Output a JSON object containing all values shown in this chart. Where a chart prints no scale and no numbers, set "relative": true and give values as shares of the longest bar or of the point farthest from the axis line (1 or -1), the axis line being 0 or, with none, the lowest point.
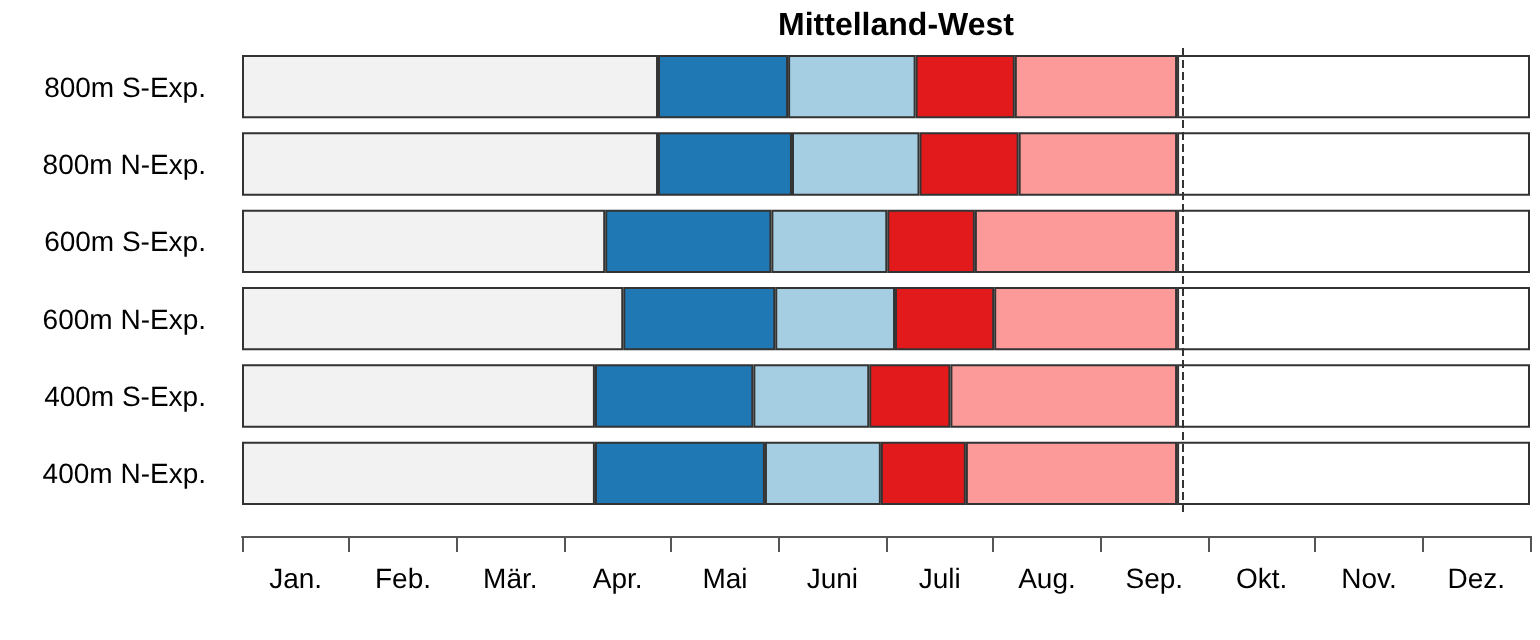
{
  "chart_data": {
    "type": "bar",
    "orientation": "horizontal",
    "stacked": true,
    "relative": true,
    "title": "Mittelland-West",
    "categories": [
      "800m S-Exp.",
      "800m N-Exp.",
      "600m S-Exp.",
      "600m N-Exp.",
      "400m S-Exp.",
      "400m N-Exp."
    ],
    "series": [
      {
        "color": "#f2f2f2",
        "values": [
          0.323,
          0.323,
          0.282,
          0.296,
          0.274,
          0.274
        ]
      },
      {
        "color": "#1f78b4",
        "values": [
          0.101,
          0.104,
          0.129,
          0.118,
          0.123,
          0.132
        ]
      },
      {
        "color": "#a6cee3",
        "values": [
          0.099,
          0.099,
          0.09,
          0.093,
          0.09,
          0.09
        ]
      },
      {
        "color": "#e31a1c",
        "values": [
          0.077,
          0.077,
          0.068,
          0.077,
          0.063,
          0.066
        ]
      },
      {
        "color": "#fb9a99",
        "values": [
          0.126,
          0.123,
          0.157,
          0.142,
          0.176,
          0.164
        ]
      },
      {
        "color": "#ffffff",
        "values": [
          0.274,
          0.274,
          0.274,
          0.274,
          0.274,
          0.274
        ]
      }
    ],
    "annotations": [
      "Jan.",
      "Feb.",
      "Mär.",
      "Apr.",
      "Mai",
      "Juni",
      "Juli",
      "Aug.",
      "Sep.",
      "Okt.",
      "Nov.",
      "Dez."
    ],
    "ref_lines": [
      {
        "axis": "x",
        "value": 0.733,
        "color": "#333333",
        "line_style": "dashed"
      }
    ]
  }
}
